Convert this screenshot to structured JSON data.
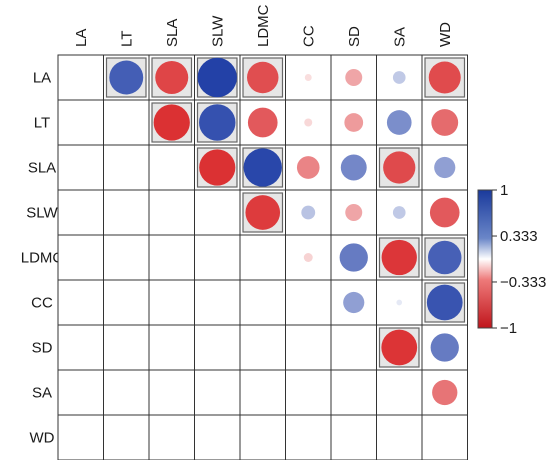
{
  "chart_data": {
    "type": "heatmap",
    "variables": [
      "LA",
      "LT",
      "SLA",
      "SLW",
      "LDMC",
      "CC",
      "SD",
      "SA",
      "WD"
    ],
    "correlations": [
      [
        "LA",
        "LT",
        0.72,
        true
      ],
      [
        "LA",
        "SLA",
        -0.68,
        true
      ],
      [
        "LA",
        "SLW",
        0.97,
        true
      ],
      [
        "LA",
        "LDMC",
        -0.62,
        true
      ],
      [
        "LA",
        "CC",
        -0.03,
        false
      ],
      [
        "LA",
        "SD",
        -0.18,
        false
      ],
      [
        "LA",
        "SA",
        0.1,
        false
      ],
      [
        "LA",
        "WD",
        -0.64,
        true
      ],
      [
        "LT",
        "SLA",
        -0.82,
        true
      ],
      [
        "LT",
        "SLW",
        0.83,
        true
      ],
      [
        "LT",
        "LDMC",
        -0.55,
        false
      ],
      [
        "LT",
        "CC",
        -0.04,
        false
      ],
      [
        "LT",
        "SD",
        -0.22,
        false
      ],
      [
        "LT",
        "SA",
        0.38,
        false
      ],
      [
        "LT",
        "WD",
        -0.45,
        false
      ],
      [
        "SLA",
        "SLW",
        -0.82,
        true
      ],
      [
        "SLA",
        "LDMC",
        0.92,
        true
      ],
      [
        "SLA",
        "CC",
        -0.32,
        false
      ],
      [
        "SLA",
        "SD",
        0.42,
        false
      ],
      [
        "SLA",
        "SA",
        -0.65,
        true
      ],
      [
        "SLA",
        "WD",
        0.28,
        false
      ],
      [
        "SLW",
        "LDMC",
        -0.75,
        true
      ],
      [
        "SLW",
        "CC",
        0.12,
        false
      ],
      [
        "SLW",
        "SD",
        -0.18,
        false
      ],
      [
        "SLW",
        "SA",
        0.1,
        false
      ],
      [
        "SLW",
        "WD",
        -0.55,
        false
      ],
      [
        "LDMC",
        "CC",
        -0.05,
        false
      ],
      [
        "LDMC",
        "SD",
        0.5,
        false
      ],
      [
        "LDMC",
        "SA",
        -0.78,
        true
      ],
      [
        "LDMC",
        "WD",
        0.7,
        true
      ],
      [
        "CC",
        "SD",
        0.28,
        false
      ],
      [
        "CC",
        "SA",
        0.02,
        false
      ],
      [
        "CC",
        "WD",
        0.8,
        true
      ],
      [
        "SD",
        "SA",
        -0.8,
        true
      ],
      [
        "SD",
        "WD",
        0.5,
        false
      ],
      [
        "SA",
        "WD",
        -0.4,
        false
      ]
    ],
    "colorbar": {
      "ticks": [
        1,
        0.333,
        -0.333,
        -1
      ],
      "tick_labels": [
        "1",
        "0.333",
        "−0.333",
        "−1"
      ],
      "colors": {
        "positive": "#1f3ea6",
        "neutral": "#ffffff",
        "negative": "#d7191c"
      }
    }
  }
}
